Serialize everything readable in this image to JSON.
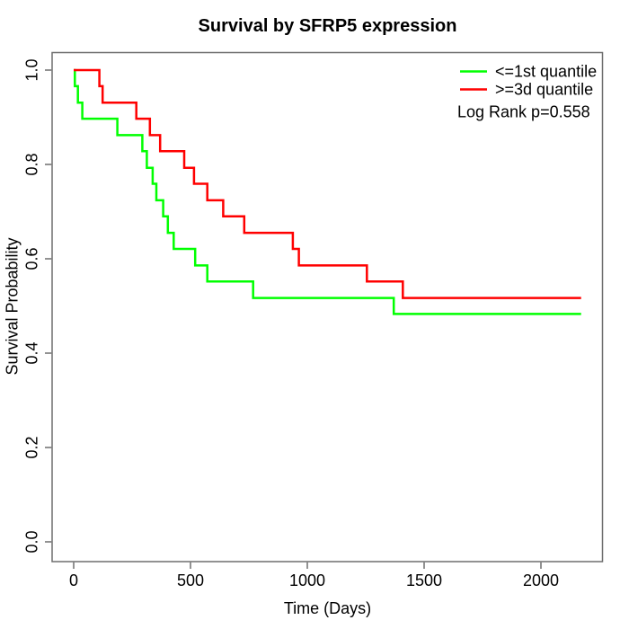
{
  "figure": {
    "background": "#ffffff"
  },
  "chart_data": {
    "type": "line",
    "subtype": "kaplan_meier_step",
    "title": "Survival by SFRP5 expression",
    "xlabel": "Time (Days)",
    "ylabel": "Survival Probability",
    "xlim": [
      0,
      2000
    ],
    "ylim": [
      0.0,
      1.0
    ],
    "grid": false,
    "legend_position": "top-right",
    "annotation": "Log Rank p=0.558",
    "axis_color": "#6e6e6e",
    "text_color": "#000000",
    "xticks": [
      {
        "label": "0",
        "value": 0
      },
      {
        "label": "500",
        "value": 500
      },
      {
        "label": "1000",
        "value": 1000
      },
      {
        "label": "1500",
        "value": 1500
      },
      {
        "label": "2000",
        "value": 2000
      }
    ],
    "yticks": [
      {
        "label": "0.0",
        "value": 0.0
      },
      {
        "label": "0.2",
        "value": 0.2
      },
      {
        "label": "0.4",
        "value": 0.4
      },
      {
        "label": "0.6",
        "value": 0.6
      },
      {
        "label": "0.8",
        "value": 0.8
      },
      {
        "label": "1.0",
        "value": 1.0
      }
    ],
    "series": [
      {
        "name": "<=1st quantile",
        "color": "#00ff00",
        "points": [
          [
            0,
            1.0
          ],
          [
            5,
            0.966
          ],
          [
            18,
            0.931
          ],
          [
            37,
            0.897
          ],
          [
            187,
            0.862
          ],
          [
            294,
            0.828
          ],
          [
            313,
            0.793
          ],
          [
            338,
            0.759
          ],
          [
            354,
            0.724
          ],
          [
            383,
            0.69
          ],
          [
            403,
            0.655
          ],
          [
            428,
            0.621
          ],
          [
            520,
            0.586
          ],
          [
            572,
            0.552
          ],
          [
            768,
            0.517
          ],
          [
            1370,
            0.483
          ],
          [
            2172,
            0.483
          ]
        ]
      },
      {
        "name": ">=3d quantile",
        "color": "#ff0000",
        "points": [
          [
            0,
            1.0
          ],
          [
            110,
            0.966
          ],
          [
            124,
            0.931
          ],
          [
            268,
            0.897
          ],
          [
            326,
            0.862
          ],
          [
            370,
            0.828
          ],
          [
            473,
            0.793
          ],
          [
            515,
            0.759
          ],
          [
            572,
            0.724
          ],
          [
            640,
            0.69
          ],
          [
            730,
            0.655
          ],
          [
            938,
            0.621
          ],
          [
            964,
            0.586
          ],
          [
            1255,
            0.552
          ],
          [
            1409,
            0.517
          ],
          [
            2172,
            0.517
          ]
        ]
      }
    ]
  }
}
